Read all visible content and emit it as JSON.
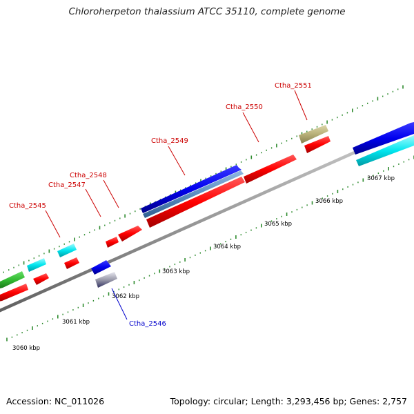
{
  "title": "Chloroherpeton thalassium ATCC 35110, complete genome",
  "footer": {
    "accession": "Accession: NC_011026",
    "summary": "Topology: circular; Length: 3,293,456 bp; Genes: 2,757"
  },
  "colors": {
    "label_forward": "#cc0000",
    "label_reverse": "#0000cc",
    "backbone": "#999999",
    "tick": "#2e8b2e",
    "cds": "#ff0000",
    "blue_gene": "#0000ee",
    "cyan_gene": "#00e5ee",
    "green_gene": "#33bb33",
    "olive_gene": "#b8b078",
    "steel_gene": "#5a8ec2",
    "grey_gene": "#9a9aaa"
  },
  "kbp_labels": [
    "3060 kbp",
    "3061 kbp",
    "3062 kbp",
    "3063 kbp",
    "3064 kbp",
    "3065 kbp",
    "3066 kbp",
    "3067 kbp"
  ],
  "gene_labels": [
    {
      "text": "Ctha_2545",
      "strand": "forward"
    },
    {
      "text": "Ctha_2547",
      "strand": "forward"
    },
    {
      "text": "Ctha_2548",
      "strand": "forward"
    },
    {
      "text": "Ctha_2549",
      "strand": "forward"
    },
    {
      "text": "Ctha_2550",
      "strand": "forward"
    },
    {
      "text": "Ctha_2551",
      "strand": "forward"
    },
    {
      "text": "Ctha_2546",
      "strand": "reverse"
    }
  ]
}
